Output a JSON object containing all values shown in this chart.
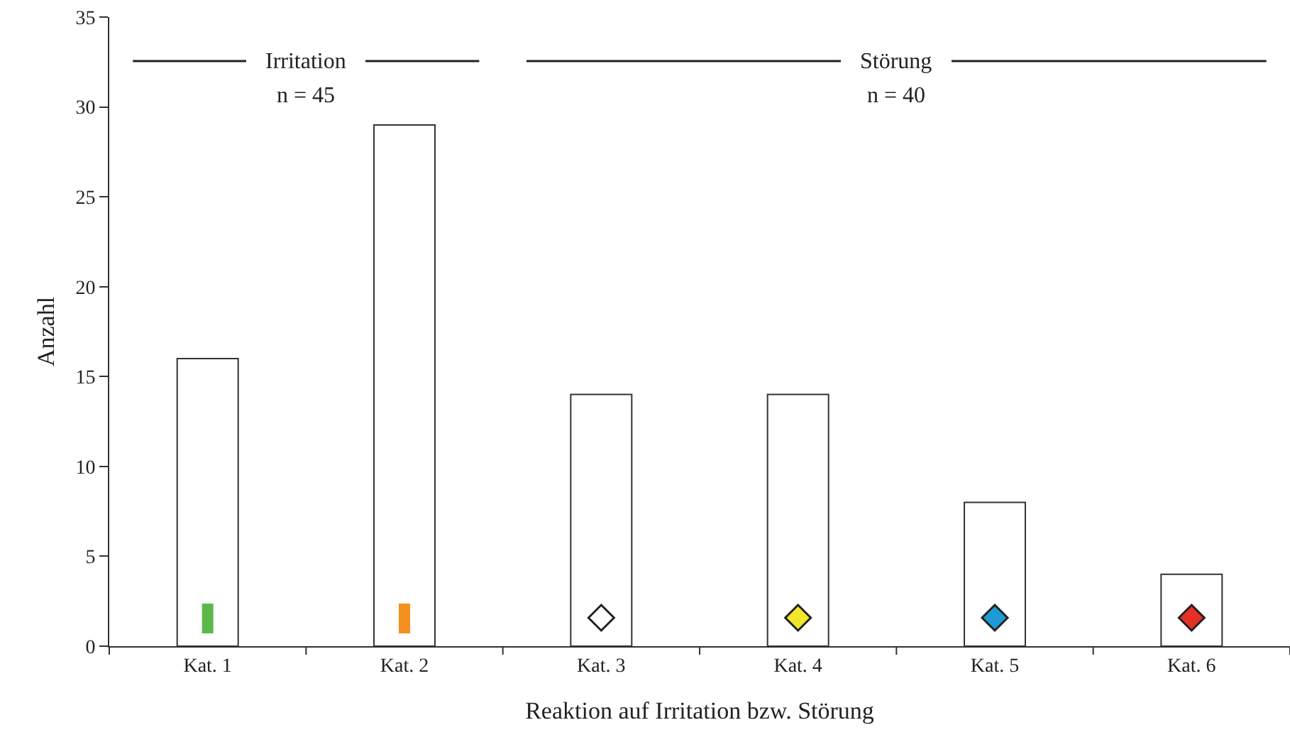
{
  "chart_data": {
    "type": "bar",
    "xlabel": "Reaktion auf Irritation bzw. Störung",
    "ylabel": "Anzahl",
    "categories": [
      "Kat. 1",
      "Kat. 2",
      "Kat. 3",
      "Kat. 4",
      "Kat. 5",
      "Kat. 6"
    ],
    "values": [
      16,
      29,
      14,
      14,
      8,
      4
    ],
    "color": "#ffffff",
    "ylim": [
      0,
      35
    ],
    "yticks": [
      0,
      5,
      10,
      15,
      20,
      25,
      30,
      35
    ],
    "grid": false,
    "annotations": [
      "Irritation",
      "n = 45",
      "Störung",
      "n = 40"
    ]
  }
}
